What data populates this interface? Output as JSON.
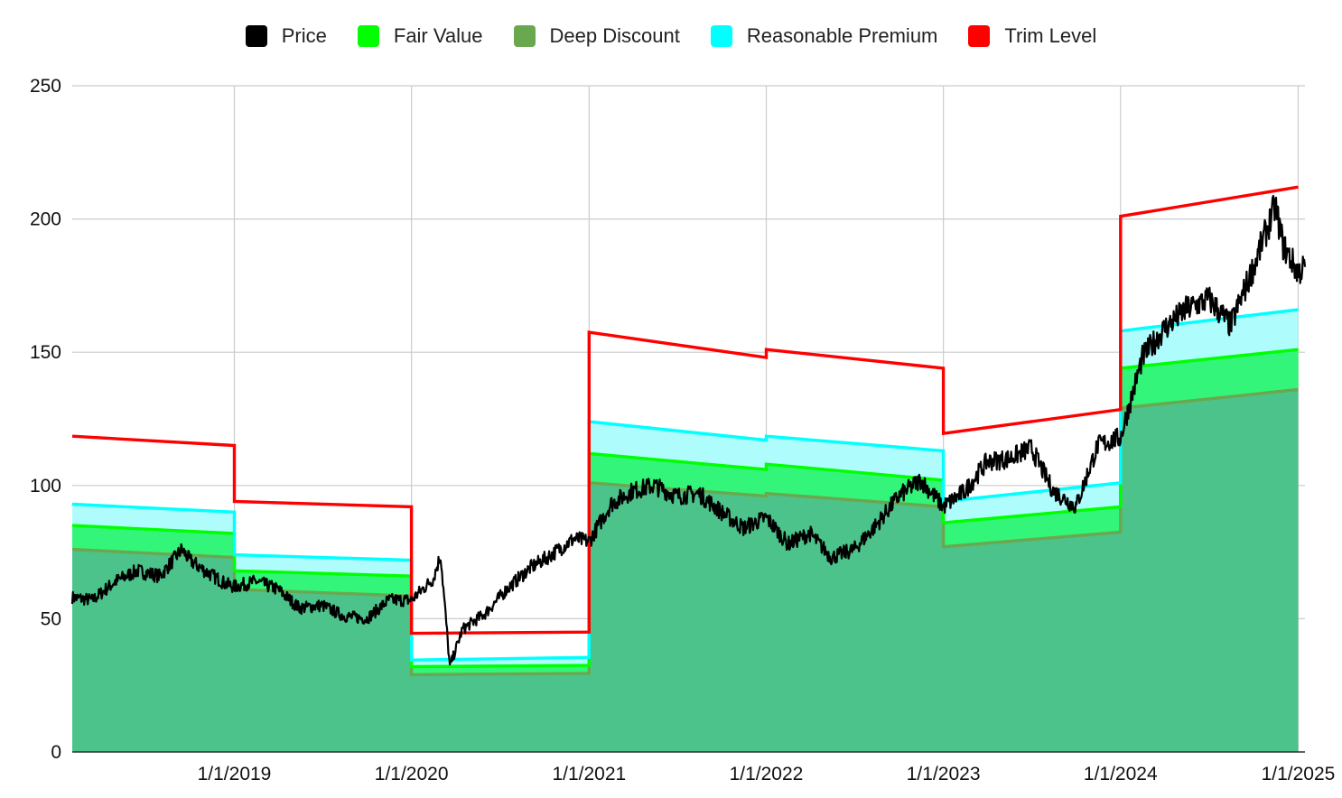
{
  "chart_data": {
    "type": "area",
    "title": "",
    "xlabel": "",
    "ylabel": "",
    "x_range": [
      "2018-02-01",
      "2025-01-15"
    ],
    "ylim": [
      0,
      250
    ],
    "y_ticks": [
      0,
      50,
      100,
      150,
      200,
      250
    ],
    "x_ticks": [
      "1/1/2019",
      "1/1/2020",
      "1/1/2021",
      "1/1/2022",
      "1/1/2023",
      "1/1/2024",
      "1/1/2025"
    ],
    "grid": true,
    "legend_position": "top",
    "legend": [
      {
        "name": "Price",
        "color": "#000000"
      },
      {
        "name": "Fair Value",
        "color": "#00ff00"
      },
      {
        "name": "Deep Discount",
        "color": "#6aa84f"
      },
      {
        "name": "Reasonable Premium",
        "color": "#00ffff"
      },
      {
        "name": "Trim Level",
        "color": "#ff0000"
      }
    ],
    "valuation_bands": {
      "fill_colors": {
        "deep_discount": "#4cc38a",
        "fair_value": "#33f57a",
        "reasonable_premium": "#aefcfc"
      },
      "periods": [
        {
          "start": "2018-02-01",
          "end": "2019-01-01",
          "deep_discount": [
            76,
            73
          ],
          "fair_value": [
            85,
            82
          ],
          "reasonable_premium": [
            93,
            90
          ],
          "trim_level": [
            118.5,
            115
          ]
        },
        {
          "start": "2019-01-01",
          "end": "2020-01-01",
          "deep_discount": [
            61,
            58.5
          ],
          "fair_value": [
            68,
            66
          ],
          "reasonable_premium": [
            74,
            72
          ],
          "trim_level": [
            94,
            92
          ]
        },
        {
          "start": "2020-01-01",
          "end": "2021-01-01",
          "deep_discount": [
            29,
            29.5
          ],
          "fair_value": [
            32,
            32.5
          ],
          "reasonable_premium": [
            34.5,
            35.5
          ],
          "trim_level": [
            44.5,
            45
          ]
        },
        {
          "start": "2021-01-01",
          "end": "2022-01-01",
          "deep_discount": [
            101,
            96
          ],
          "fair_value": [
            112,
            106
          ],
          "reasonable_premium": [
            124,
            117
          ],
          "trim_level": [
            157.5,
            148
          ]
        },
        {
          "start": "2022-01-01",
          "end": "2023-01-01",
          "deep_discount": [
            97,
            92
          ],
          "fair_value": [
            108,
            102
          ],
          "reasonable_premium": [
            118.5,
            113
          ],
          "trim_level": [
            151,
            144
          ]
        },
        {
          "start": "2023-01-01",
          "end": "2024-01-01",
          "deep_discount": [
            77,
            82.5
          ],
          "fair_value": [
            86,
            92
          ],
          "reasonable_premium": [
            94,
            101
          ],
          "trim_level": [
            119.5,
            128.5
          ]
        },
        {
          "start": "2024-01-01",
          "end": "2025-01-01",
          "deep_discount": [
            129,
            136
          ],
          "fair_value": [
            144,
            151
          ],
          "reasonable_premium": [
            158,
            166
          ],
          "trim_level": [
            201,
            212
          ]
        }
      ]
    },
    "series": [
      {
        "name": "Price",
        "x": [
          "2018-02-01",
          "2018-03-15",
          "2018-05-01",
          "2018-06-15",
          "2018-08-01",
          "2018-09-15",
          "2018-10-01",
          "2018-11-01",
          "2018-12-15",
          "2019-01-01",
          "2019-02-15",
          "2019-04-01",
          "2019-05-15",
          "2019-07-01",
          "2019-08-15",
          "2019-10-01",
          "2019-11-15",
          "2020-01-01",
          "2020-02-15",
          "2020-03-01",
          "2020-03-20",
          "2020-04-15",
          "2020-06-01",
          "2020-07-15",
          "2020-09-01",
          "2020-10-15",
          "2020-12-01",
          "2021-01-01",
          "2021-02-15",
          "2021-04-01",
          "2021-05-15",
          "2021-07-01",
          "2021-08-15",
          "2021-10-01",
          "2021-11-15",
          "2022-01-01",
          "2022-02-15",
          "2022-04-01",
          "2022-05-15",
          "2022-07-01",
          "2022-08-15",
          "2022-10-01",
          "2022-11-15",
          "2023-01-01",
          "2023-02-15",
          "2023-04-01",
          "2023-05-15",
          "2023-07-01",
          "2023-08-15",
          "2023-10-01",
          "2023-11-15",
          "2024-01-01",
          "2024-02-15",
          "2024-04-01",
          "2024-05-15",
          "2024-07-01",
          "2024-08-15",
          "2024-10-01",
          "2024-11-15",
          "2024-12-01",
          "2025-01-01",
          "2025-01-15"
        ],
        "values": [
          58,
          57,
          64,
          68,
          66,
          76,
          72,
          68,
          63,
          62,
          64,
          61,
          54,
          55,
          51,
          50,
          57,
          57,
          65,
          74,
          32,
          46,
          52,
          61,
          69,
          74,
          80,
          79,
          93,
          98,
          100,
          96,
          97,
          90,
          84,
          88,
          78,
          82,
          73,
          76,
          85,
          96,
          102,
          92,
          98,
          109,
          110,
          114,
          98,
          92,
          115,
          118,
          148,
          159,
          166,
          170,
          160,
          182,
          205,
          190,
          180,
          182
        ]
      }
    ]
  }
}
